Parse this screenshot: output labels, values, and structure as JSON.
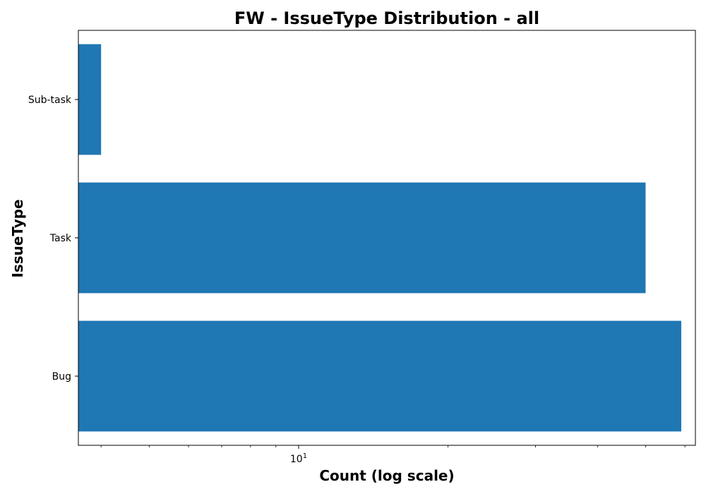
{
  "chart_data": {
    "type": "bar",
    "orientation": "horizontal",
    "title": "FW - IssueType Distribution - all",
    "xlabel": "Count (log scale)",
    "ylabel": "IssueType",
    "x_scale": "log",
    "xlim": [
      3.6,
      63
    ],
    "categories": [
      "Sub-task",
      "Task",
      "Bug"
    ],
    "values": [
      4,
      50,
      59
    ],
    "bar_color": "#1f77b4",
    "x_major_ticks": [
      {
        "value": 10,
        "base": "10",
        "exp": "1"
      }
    ],
    "x_minor_ticks": [
      4,
      5,
      6,
      7,
      8,
      9,
      20,
      30,
      40,
      50,
      60
    ],
    "grid": false,
    "legend": "none"
  }
}
